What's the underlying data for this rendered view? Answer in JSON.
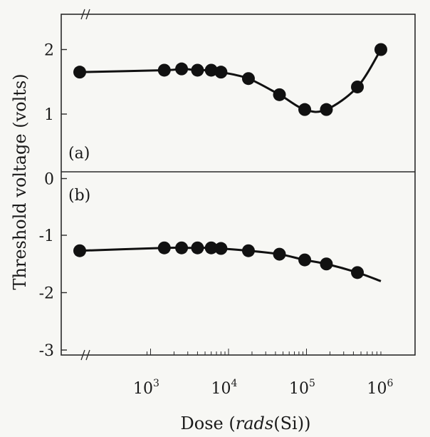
{
  "chart_data": {
    "type": "line",
    "xlabel_parts": [
      {
        "text": "Dose (",
        "italic": false
      },
      {
        "text": "rads",
        "italic": true
      },
      {
        "text": "(Si))",
        "italic": false
      }
    ],
    "ylabel": "Threshold voltage (volts)",
    "x_scale": "log",
    "xlim": [
      1,
      1000000
    ],
    "ylim": [
      -3,
      2.5
    ],
    "x_tick_labels": [
      {
        "base": "10",
        "exp": "3",
        "value": 1000
      },
      {
        "base": "10",
        "exp": "4",
        "value": 10000
      },
      {
        "base": "10",
        "exp": "5",
        "value": 100000
      },
      {
        "base": "10",
        "exp": "6",
        "value": 1000000
      }
    ],
    "y_tick_labels": [
      {
        "label": "2",
        "value": 2
      },
      {
        "label": "1",
        "value": 1
      },
      {
        "label": "0",
        "value": 0
      },
      {
        "label": "-1",
        "value": -1
      },
      {
        "label": "-2",
        "value": -2
      },
      {
        "label": "-3",
        "value": -3
      }
    ],
    "panels": [
      {
        "label": "(a)"
      },
      {
        "label": "(b)"
      }
    ],
    "series": [
      {
        "panel": "(a)",
        "x": [
          "pre-rad",
          1500,
          2500,
          4000,
          6000,
          8000,
          18000,
          45000,
          95000,
          180000,
          450000,
          900000
        ],
        "y": [
          1.65,
          1.68,
          1.7,
          1.68,
          1.68,
          1.65,
          1.55,
          1.3,
          1.07,
          1.07,
          1.42,
          2.0
        ]
      },
      {
        "panel": "(b)",
        "x": [
          "pre-rad",
          1500,
          2500,
          4000,
          6000,
          8000,
          18000,
          45000,
          95000,
          180000,
          450000,
          900000
        ],
        "y": [
          -1.27,
          -1.22,
          -1.22,
          -1.22,
          -1.22,
          -1.23,
          -1.27,
          -1.33,
          -1.43,
          -1.5,
          -1.65,
          -1.8
        ]
      }
    ],
    "grid": false,
    "axis_break_marks": true
  }
}
